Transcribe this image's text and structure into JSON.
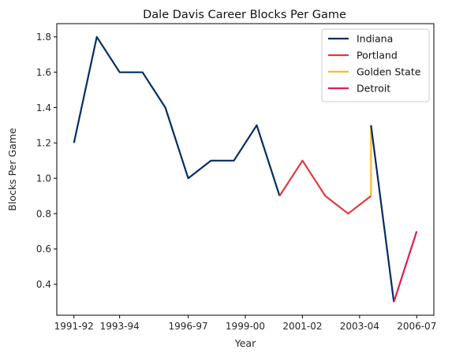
{
  "chart_data": {
    "type": "line",
    "title": "Dale Davis  Career Blocks Per Game",
    "xlabel": "Year",
    "ylabel": "Blocks Per Game",
    "x_tick_labels": [
      "1991-92",
      "1993-94",
      "1996-97",
      "1999-00",
      "2001-02",
      "2003-04",
      "2006-07"
    ],
    "x_tick_positions": [
      0,
      2,
      5,
      7.5,
      10,
      12.5,
      15
    ],
    "y_ticks": [
      0.4,
      0.6,
      0.8,
      1.0,
      1.2,
      1.4,
      1.6,
      1.8
    ],
    "y_tick_labels": [
      "0.4",
      "0.6",
      "0.8",
      "1.0",
      "1.2",
      "1.4",
      "1.6",
      "1.8"
    ],
    "xlim": [
      -0.75,
      15.75
    ],
    "ylim": [
      0.225,
      1.875
    ],
    "grid": false,
    "legend_position": "top-right",
    "series": [
      {
        "name": "Indiana",
        "color": "#002d62",
        "points": [
          [
            0,
            1.2
          ],
          [
            1,
            1.8
          ],
          [
            2,
            1.6
          ],
          [
            3,
            1.6
          ],
          [
            4,
            1.4
          ],
          [
            5,
            1.0
          ],
          [
            6,
            1.1
          ],
          [
            7,
            1.1
          ],
          [
            8,
            1.3
          ],
          [
            9,
            0.9
          ]
        ]
      },
      {
        "name": "Portland",
        "color": "#e03a3e",
        "points": [
          [
            9,
            0.9
          ],
          [
            10,
            1.1
          ],
          [
            11,
            0.9
          ],
          [
            12,
            0.8
          ],
          [
            13,
            0.9
          ]
        ]
      },
      {
        "name": "Golden State",
        "color": "#fdb927",
        "points": [
          [
            13,
            0.9
          ],
          [
            13,
            1.3
          ]
        ]
      },
      {
        "name": "Indiana",
        "color": "#002d62",
        "legend": false,
        "points": [
          [
            13,
            1.3
          ],
          [
            14,
            0.3
          ]
        ]
      },
      {
        "name": "Detroit",
        "color": "#e31b4f",
        "points": [
          [
            14,
            0.3
          ],
          [
            15,
            0.7
          ]
        ]
      }
    ]
  }
}
